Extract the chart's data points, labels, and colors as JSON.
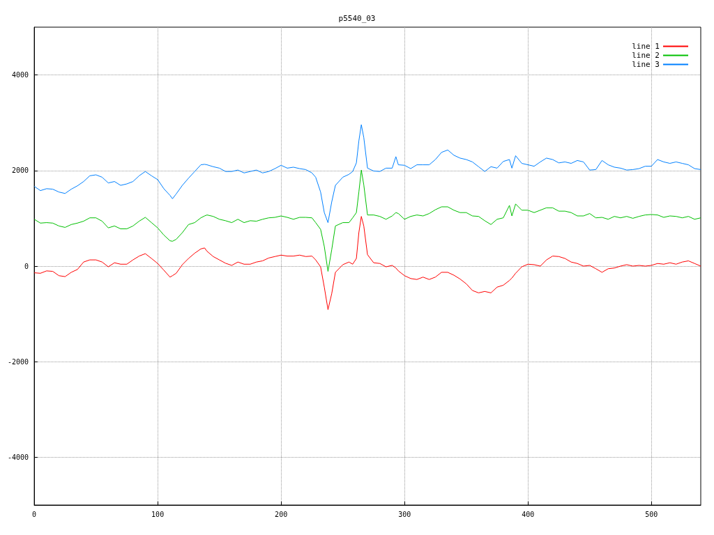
{
  "chart_data": {
    "type": "line",
    "title": "p5540_03",
    "x": [
      0,
      5,
      10,
      15,
      20,
      25,
      30,
      35,
      40,
      45,
      50,
      55,
      60,
      65,
      70,
      75,
      80,
      85,
      90,
      95,
      100,
      105,
      110,
      112,
      115,
      120,
      125,
      130,
      135,
      138,
      140,
      145,
      150,
      155,
      160,
      165,
      170,
      175,
      180,
      185,
      190,
      195,
      200,
      205,
      210,
      215,
      220,
      225,
      228,
      232,
      235,
      238,
      241,
      244,
      250,
      255,
      258,
      261,
      263,
      265,
      267,
      270,
      275,
      280,
      285,
      290,
      293,
      295,
      300,
      305,
      310,
      315,
      320,
      325,
      330,
      335,
      340,
      345,
      350,
      355,
      360,
      365,
      370,
      375,
      380,
      385,
      387,
      390,
      395,
      400,
      405,
      410,
      415,
      420,
      425,
      430,
      435,
      440,
      445,
      450,
      455,
      460,
      465,
      470,
      475,
      480,
      485,
      490,
      495,
      500,
      505,
      510,
      515,
      520,
      525,
      530,
      535,
      540
    ],
    "series": [
      {
        "name": "line 1",
        "color": "#ff0000",
        "values": [
          -140,
          -150,
          -100,
          -110,
          -200,
          -220,
          -130,
          -70,
          85,
          130,
          130,
          85,
          -15,
          70,
          40,
          40,
          130,
          210,
          260,
          160,
          55,
          -85,
          -230,
          -200,
          -150,
          30,
          160,
          270,
          360,
          380,
          310,
          200,
          130,
          60,
          15,
          85,
          40,
          40,
          85,
          110,
          170,
          200,
          230,
          210,
          210,
          230,
          200,
          210,
          130,
          -15,
          -440,
          -910,
          -580,
          -130,
          30,
          85,
          40,
          160,
          700,
          1040,
          840,
          240,
          70,
          55,
          -15,
          15,
          -40,
          -100,
          -200,
          -260,
          -280,
          -230,
          -280,
          -230,
          -130,
          -130,
          -190,
          -270,
          -370,
          -510,
          -560,
          -530,
          -560,
          -440,
          -400,
          -300,
          -250,
          -150,
          -15,
          40,
          30,
          0,
          130,
          210,
          200,
          160,
          85,
          55,
          0,
          15,
          -55,
          -130,
          -55,
          -40,
          0,
          30,
          0,
          15,
          0,
          15,
          55,
          40,
          70,
          40,
          85,
          110,
          55,
          0
        ]
      },
      {
        "name": "line 2",
        "color": "#00c000",
        "values": [
          980,
          900,
          910,
          900,
          840,
          810,
          870,
          900,
          940,
          1010,
          1010,
          940,
          800,
          840,
          780,
          780,
          840,
          940,
          1020,
          910,
          800,
          650,
          530,
          520,
          560,
          700,
          870,
          910,
          1010,
          1050,
          1070,
          1040,
          980,
          950,
          910,
          980,
          910,
          950,
          940,
          980,
          1010,
          1020,
          1050,
          1020,
          980,
          1020,
          1020,
          1010,
          910,
          770,
          410,
          -110,
          340,
          840,
          910,
          910,
          1010,
          1120,
          1550,
          2010,
          1700,
          1070,
          1070,
          1040,
          980,
          1050,
          1120,
          1100,
          980,
          1040,
          1070,
          1050,
          1100,
          1180,
          1240,
          1240,
          1170,
          1120,
          1120,
          1050,
          1040,
          950,
          870,
          980,
          1010,
          1270,
          1050,
          1300,
          1170,
          1170,
          1120,
          1170,
          1220,
          1220,
          1150,
          1150,
          1120,
          1050,
          1050,
          1100,
          1010,
          1020,
          980,
          1040,
          1010,
          1040,
          1000,
          1040,
          1070,
          1080,
          1070,
          1020,
          1050,
          1040,
          1010,
          1040,
          980,
          1010
        ]
      },
      {
        "name": "line 3",
        "color": "#0080ff",
        "values": [
          1670,
          1580,
          1620,
          1610,
          1550,
          1520,
          1610,
          1680,
          1770,
          1890,
          1910,
          1860,
          1740,
          1770,
          1690,
          1720,
          1770,
          1890,
          1980,
          1890,
          1810,
          1620,
          1480,
          1410,
          1510,
          1690,
          1840,
          1980,
          2120,
          2130,
          2120,
          2080,
          2050,
          1980,
          1980,
          2010,
          1950,
          1980,
          2010,
          1950,
          1980,
          2040,
          2110,
          2050,
          2070,
          2040,
          2020,
          1950,
          1860,
          1550,
          1120,
          910,
          1340,
          1690,
          1860,
          1920,
          1980,
          2160,
          2620,
          2960,
          2690,
          2050,
          1990,
          1980,
          2050,
          2050,
          2290,
          2120,
          2110,
          2040,
          2120,
          2120,
          2120,
          2230,
          2380,
          2430,
          2320,
          2260,
          2230,
          2180,
          2080,
          1980,
          2080,
          2050,
          2190,
          2230,
          2050,
          2310,
          2150,
          2120,
          2090,
          2180,
          2260,
          2230,
          2160,
          2180,
          2150,
          2210,
          2180,
          2010,
          2020,
          2210,
          2120,
          2070,
          2050,
          2010,
          2020,
          2040,
          2090,
          2090,
          2230,
          2180,
          2150,
          2180,
          2150,
          2120,
          2040,
          2020
        ]
      }
    ],
    "xlim": [
      0,
      540
    ],
    "xticks": [
      0,
      100,
      200,
      300,
      400,
      500
    ],
    "ylim": [
      -5000,
      5000
    ],
    "yticks": [
      -4000,
      -2000,
      0,
      2000,
      4000
    ],
    "grid": true,
    "legend": "top right",
    "marker": "none",
    "line_style": "solid"
  }
}
